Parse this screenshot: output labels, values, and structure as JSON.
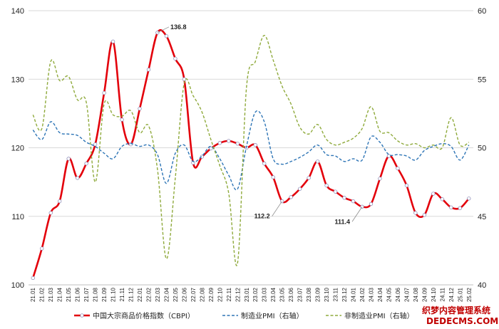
{
  "chart_data": {
    "type": "line",
    "categories": [
      "21.01",
      "21.02",
      "21.03",
      "21.04",
      "21.05",
      "21.06",
      "21.07",
      "21.08",
      "21.09",
      "21.10",
      "21.11",
      "21.12",
      "22.01",
      "22.02",
      "22.03",
      "22.04",
      "22.05",
      "22.06",
      "22.07",
      "22.08",
      "22.09",
      "22.10",
      "22.11",
      "22.12",
      "23.01",
      "23.02",
      "23.03",
      "23.04",
      "23.05",
      "23.06",
      "23.07",
      "23.08",
      "23.09",
      "23.10",
      "23.11",
      "23.12",
      "24.01",
      "24.02",
      "24.03",
      "24.04",
      "24.05",
      "24.06",
      "24.07",
      "24.08",
      "24.09",
      "24.10",
      "24.11",
      "24.12",
      "25.01",
      "25.02"
    ],
    "xtick_labels": [
      "21.01",
      "21.02",
      "21.03",
      "21.04",
      "21.05",
      "21.06",
      "21.07",
      "21.08",
      "21.09",
      "21.10",
      "21.11",
      "21.12",
      "22.01",
      "22.02",
      "22.03",
      "22.04",
      "22.05",
      "22.06",
      "22.07",
      "22.08",
      "22.09",
      "22.10",
      "22.11",
      "22.12",
      "23.01",
      "23.02",
      "23.03",
      "23.04",
      "23.05",
      "23.06",
      "23.07",
      "23.08",
      "23.09",
      "23.10",
      "23.11",
      "23.12",
      "24.01",
      "24.02",
      "24.03",
      "24.04",
      "24.05",
      "24.06",
      "24.07",
      "24.08",
      "24.09",
      "24.10",
      "24.11",
      "24.12",
      "25.01",
      "25.02"
    ],
    "y_left": {
      "min": 100,
      "max": 140,
      "ticks": [
        "100",
        "110",
        "120",
        "130",
        "140"
      ]
    },
    "y_right": {
      "min": 40,
      "max": 60,
      "ticks": [
        "40",
        "45",
        "50",
        "55",
        "60"
      ]
    },
    "grid": true,
    "legend_position": "bottom",
    "series": [
      {
        "name": "中国大宗商品价格指数（CBPI）",
        "axis": "left",
        "color": "#e3000b",
        "style": "solid-with-markers",
        "values": [
          101.0,
          105.3,
          110.5,
          112.2,
          118.4,
          115.6,
          117.7,
          120.5,
          128.0,
          135.5,
          124.1,
          120.5,
          125.7,
          131.4,
          136.8,
          136.3,
          133.0,
          130.0,
          117.8,
          118.7,
          119.9,
          120.7,
          121.0,
          120.6,
          120.0,
          120.4,
          117.7,
          115.7,
          112.2,
          112.8,
          114.0,
          115.6,
          118.0,
          114.5,
          113.6,
          112.7,
          112.2,
          111.4,
          111.8,
          115.5,
          118.8,
          117.0,
          114.5,
          110.5,
          110.2,
          113.3,
          112.5,
          111.3,
          111.2,
          112.6
        ]
      },
      {
        "name": "制造业PMI（右轴）",
        "axis": "right",
        "color": "#2e75b6",
        "style": "dashed",
        "values": [
          51.3,
          50.6,
          51.9,
          51.1,
          51.0,
          50.9,
          50.4,
          50.1,
          49.6,
          49.2,
          50.1,
          50.3,
          50.1,
          50.2,
          49.5,
          47.4,
          49.6,
          50.2,
          49.0,
          49.4,
          50.1,
          49.2,
          48.0,
          47.0,
          50.1,
          52.6,
          51.9,
          49.2,
          48.8,
          49.0,
          49.3,
          49.7,
          50.2,
          49.5,
          49.4,
          49.0,
          49.2,
          49.1,
          50.8,
          50.4,
          49.5,
          49.5,
          49.4,
          49.1,
          49.8,
          50.1,
          50.3,
          50.1,
          49.1,
          50.2
        ]
      },
      {
        "name": "非制造业PMI（右轴）",
        "axis": "right",
        "color": "#8faa3c",
        "style": "dashed",
        "values": [
          52.4,
          51.4,
          56.3,
          54.9,
          55.2,
          53.5,
          53.3,
          47.5,
          53.2,
          52.4,
          52.3,
          52.7,
          51.1,
          51.6,
          48.4,
          41.9,
          47.8,
          54.7,
          53.8,
          52.6,
          50.6,
          48.7,
          46.7,
          41.6,
          54.4,
          56.3,
          58.2,
          56.4,
          54.5,
          53.2,
          51.5,
          51.0,
          51.7,
          50.6,
          50.2,
          50.4,
          50.7,
          51.4,
          53.0,
          51.2,
          51.1,
          50.5,
          50.2,
          50.3,
          50.0,
          50.2,
          50.0,
          52.2,
          50.2,
          50.4
        ]
      }
    ],
    "annotations": [
      {
        "text": "136.8",
        "index": 14
      },
      {
        "text": "112.2",
        "index": 28
      },
      {
        "text": "111.4",
        "index": 37
      }
    ]
  },
  "watermark": {
    "line1": "织梦内容管理系统",
    "line2": "DEDECMS.COM",
    "color1": "#c00000",
    "color2": "#c00000"
  }
}
